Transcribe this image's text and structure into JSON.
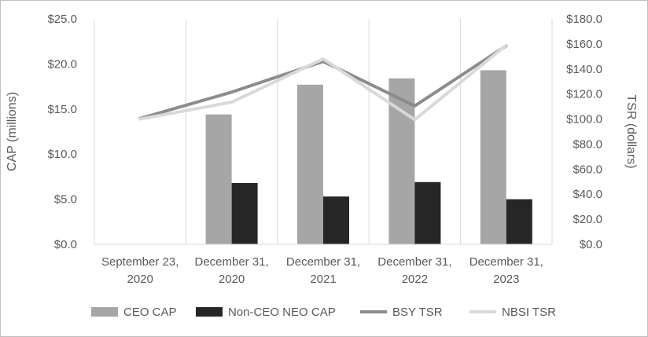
{
  "chart_data": {
    "type": "bar",
    "categories": [
      [
        "September 23,",
        "2020"
      ],
      [
        "December 31,",
        "2020"
      ],
      [
        "December 31,",
        "2021"
      ],
      [
        "December 31,",
        "2022"
      ],
      [
        "December 31,",
        "2023"
      ]
    ],
    "series": [
      {
        "name": "CEO CAP",
        "kind": "bar",
        "axis": "left",
        "color": "#a6a6a6",
        "values": [
          null,
          14.4,
          17.7,
          18.4,
          19.3
        ]
      },
      {
        "name": "Non-CEO NEO CAP",
        "kind": "bar",
        "axis": "left",
        "color": "#262626",
        "values": [
          null,
          6.8,
          5.3,
          6.9,
          5.0
        ]
      },
      {
        "name": "BSY TSR",
        "kind": "line",
        "axis": "right",
        "color": "#8c8c8c",
        "values": [
          100.5,
          121.5,
          146.0,
          110.5,
          158.5
        ]
      },
      {
        "name": "NBSI TSR",
        "kind": "line",
        "axis": "right",
        "color": "#d9d9d9",
        "values": [
          100.0,
          113.5,
          148.0,
          99.5,
          159.0
        ]
      }
    ],
    "y_left": {
      "label": "CAP (millions)",
      "min": 0,
      "max": 25,
      "ticks": [
        0,
        5,
        10,
        15,
        20,
        25
      ],
      "tick_labels": [
        "$0.0",
        "$5.0",
        "$10.0",
        "$15.0",
        "$20.0",
        "$25.0"
      ]
    },
    "y_right": {
      "label": "TSR (dollars)",
      "min": 0,
      "max": 180,
      "ticks": [
        0,
        20,
        40,
        60,
        80,
        100,
        120,
        140,
        160,
        180
      ],
      "tick_labels": [
        "$0.0",
        "$20.0",
        "$40.0",
        "$60.0",
        "$80.0",
        "$100.0",
        "$120.0",
        "$140.0",
        "$160.0",
        "$180.0"
      ]
    },
    "gridlines": "vertical",
    "legend_position": "bottom"
  }
}
